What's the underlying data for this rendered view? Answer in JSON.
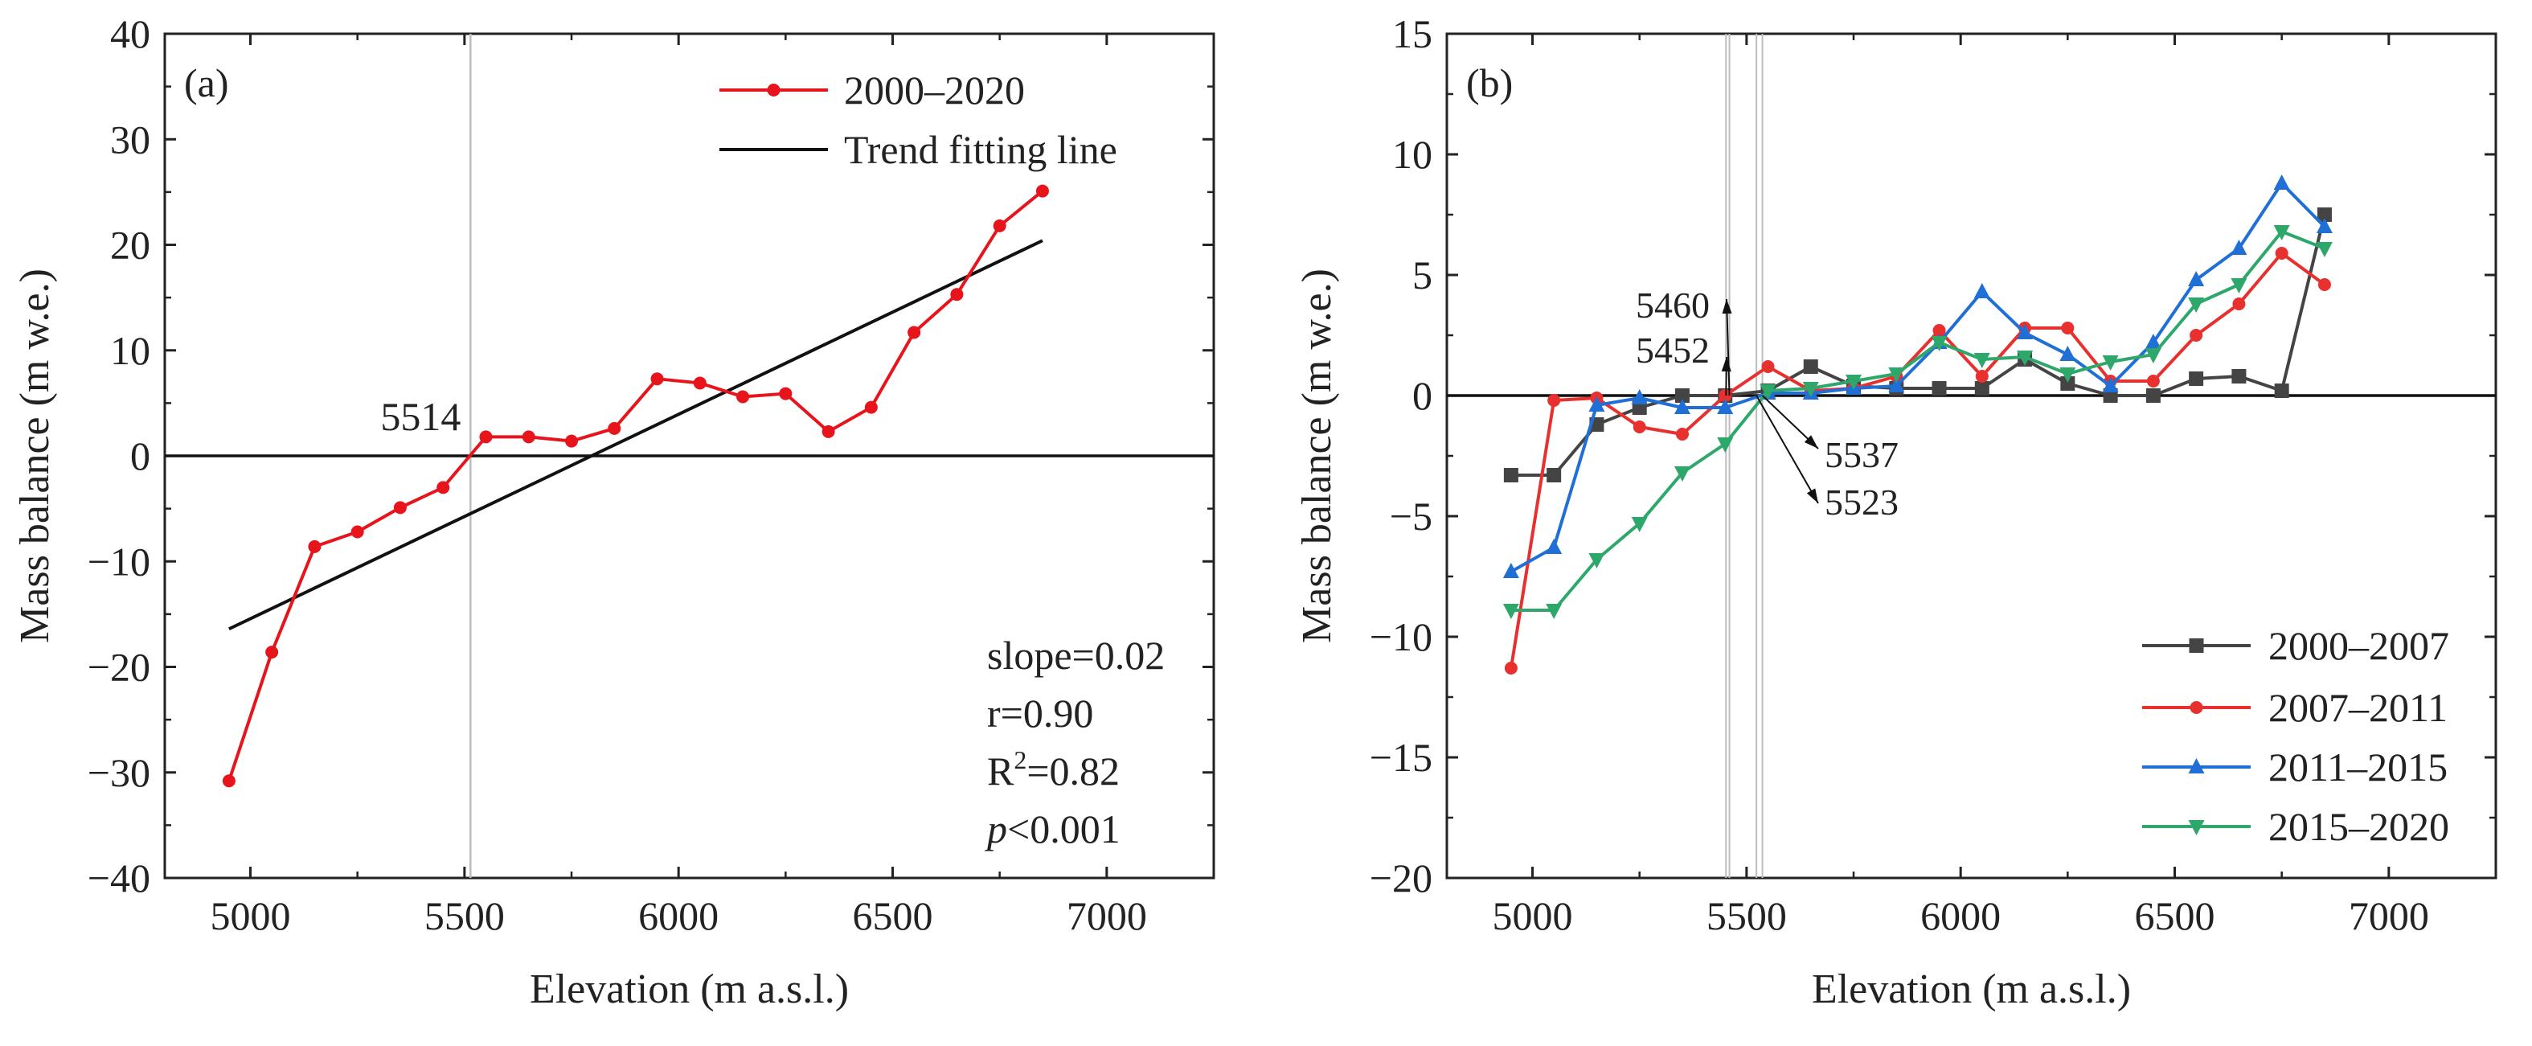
{
  "chart_data": [
    {
      "panel_label": "(a)",
      "type": "line",
      "xlabel": "Elevation (m a.s.l.)",
      "ylabel": "Mass balance (m w.e.)",
      "xlim": [
        4800,
        7250
      ],
      "ylim": [
        -40,
        40
      ],
      "xticks": [
        5000,
        5500,
        6000,
        6500,
        7000
      ],
      "yticks": [
        -40,
        -30,
        -20,
        -10,
        0,
        10,
        20,
        30,
        40
      ],
      "legend_position": "top-right",
      "series": [
        {
          "name": "2000–2020",
          "color": "#e8141c",
          "marker": "circle",
          "x": [
            4950,
            5050,
            5150,
            5250,
            5350,
            5450,
            5550,
            5650,
            5750,
            5850,
            5950,
            6050,
            6150,
            6250,
            6350,
            6450,
            6550,
            6650,
            6750,
            6850
          ],
          "y": [
            -30.8,
            -18.6,
            -8.6,
            -7.2,
            -4.9,
            -3.0,
            1.8,
            1.8,
            1.4,
            2.6,
            7.3,
            6.9,
            5.6,
            5.9,
            2.3,
            4.6,
            11.7,
            15.3,
            21.8,
            25.1
          ]
        }
      ],
      "trend_line": {
        "name": "Trend fitting line",
        "color": "#111111",
        "x": [
          4950,
          6850
        ],
        "y": [
          -16.4,
          20.4
        ]
      },
      "reference_lines": [
        {
          "x": 5514,
          "label": "5514"
        }
      ],
      "zero_line": 0,
      "stats": {
        "slope": "slope=0.02",
        "r": "r=0.90",
        "r2_prefix": "R",
        "r2_sup": "2",
        "r2_suffix": "=0.82",
        "p_var": "p",
        "p_suffix": "<0.001"
      }
    },
    {
      "panel_label": "(b)",
      "type": "line",
      "xlabel": "Elevation (m a.s.l.)",
      "ylabel": "Mass balance (m w.e.)",
      "xlim": [
        4800,
        7250
      ],
      "ylim": [
        -20,
        15
      ],
      "xticks": [
        5000,
        5500,
        6000,
        6500,
        7000
      ],
      "yticks": [
        -20,
        -15,
        -10,
        -5,
        0,
        5,
        10,
        15
      ],
      "legend_position": "bottom-right",
      "series": [
        {
          "name": "2000–2007",
          "color": "#444444",
          "marker": "square",
          "x": [
            4950,
            5050,
            5150,
            5250,
            5350,
            5450,
            5550,
            5650,
            5750,
            5850,
            5950,
            6050,
            6150,
            6250,
            6350,
            6450,
            6550,
            6650,
            6750,
            6850
          ],
          "y": [
            -3.3,
            -3.3,
            -1.2,
            -0.5,
            0.0,
            0.0,
            0.2,
            1.2,
            0.4,
            0.3,
            0.3,
            0.3,
            1.5,
            0.5,
            0.0,
            0.0,
            0.7,
            0.8,
            0.2,
            7.5
          ]
        },
        {
          "name": "2007–2011",
          "color": "#e8302f",
          "marker": "circle",
          "x": [
            4950,
            5050,
            5150,
            5250,
            5350,
            5450,
            5550,
            5650,
            5750,
            5850,
            5950,
            6050,
            6150,
            6250,
            6350,
            6450,
            6550,
            6650,
            6750,
            6850
          ],
          "y": [
            -11.3,
            -0.2,
            -0.1,
            -1.3,
            -1.6,
            0.0,
            1.2,
            0.2,
            0.3,
            0.8,
            2.7,
            0.8,
            2.8,
            2.8,
            0.6,
            0.6,
            2.5,
            3.8,
            5.9,
            4.6
          ]
        },
        {
          "name": "2011–2015",
          "color": "#1f6fd6",
          "marker": "triangle-up",
          "x": [
            4950,
            5050,
            5150,
            5250,
            5350,
            5450,
            5550,
            5650,
            5750,
            5850,
            5950,
            6050,
            6150,
            6250,
            6350,
            6450,
            6550,
            6650,
            6750,
            6850
          ],
          "y": [
            -7.3,
            -6.3,
            -0.4,
            -0.1,
            -0.5,
            -0.5,
            0.1,
            0.1,
            0.3,
            0.4,
            2.2,
            4.3,
            2.6,
            1.7,
            0.4,
            2.2,
            4.8,
            6.1,
            8.8,
            7.0
          ]
        },
        {
          "name": "2015–2020",
          "color": "#2ea86a",
          "marker": "triangle-down",
          "x": [
            4950,
            5050,
            5150,
            5250,
            5350,
            5450,
            5550,
            5650,
            5750,
            5850,
            5950,
            6050,
            6150,
            6250,
            6350,
            6450,
            6550,
            6650,
            6750,
            6850
          ],
          "y": [
            -8.9,
            -8.9,
            -6.8,
            -5.3,
            -3.2,
            -2.0,
            0.2,
            0.3,
            0.6,
            0.9,
            2.2,
            1.5,
            1.6,
            0.9,
            1.4,
            1.7,
            3.8,
            4.6,
            6.8,
            6.1
          ]
        }
      ],
      "reference_lines": [
        {
          "x": 5452,
          "label": "5452"
        },
        {
          "x": 5460,
          "label": "5460"
        },
        {
          "x": 5523,
          "label": "5523"
        },
        {
          "x": 5537,
          "label": "5537"
        }
      ],
      "zero_line": 0
    }
  ]
}
